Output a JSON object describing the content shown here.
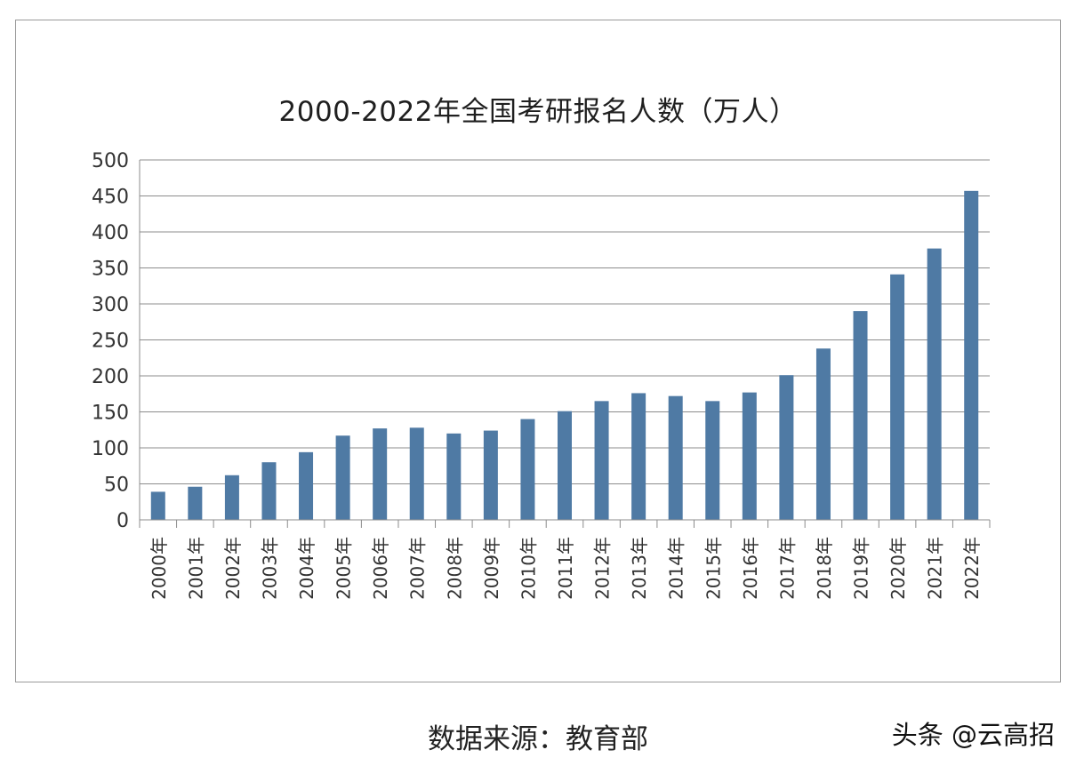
{
  "chart_data": {
    "type": "bar",
    "title": "2000-2022年全国考研报名人数（万人）",
    "categories": [
      "2000年",
      "2001年",
      "2002年",
      "2003年",
      "2004年",
      "2005年",
      "2006年",
      "2007年",
      "2008年",
      "2009年",
      "2010年",
      "2011年",
      "2012年",
      "2013年",
      "2014年",
      "2015年",
      "2016年",
      "2017年",
      "2018年",
      "2019年",
      "2020年",
      "2021年",
      "2022年"
    ],
    "values": [
      39,
      46,
      62,
      80,
      94,
      117,
      127,
      128,
      120,
      124,
      140,
      151,
      165,
      176,
      172,
      165,
      177,
      201,
      238,
      290,
      341,
      377,
      457
    ],
    "ylim": [
      0,
      500
    ],
    "yticks": [
      0,
      50,
      100,
      150,
      200,
      250,
      300,
      350,
      400,
      450,
      500
    ],
    "grid": true,
    "bar_color": "#4f7aa4"
  },
  "source": "数据来源：教育部",
  "watermark": "头条 @云高招"
}
